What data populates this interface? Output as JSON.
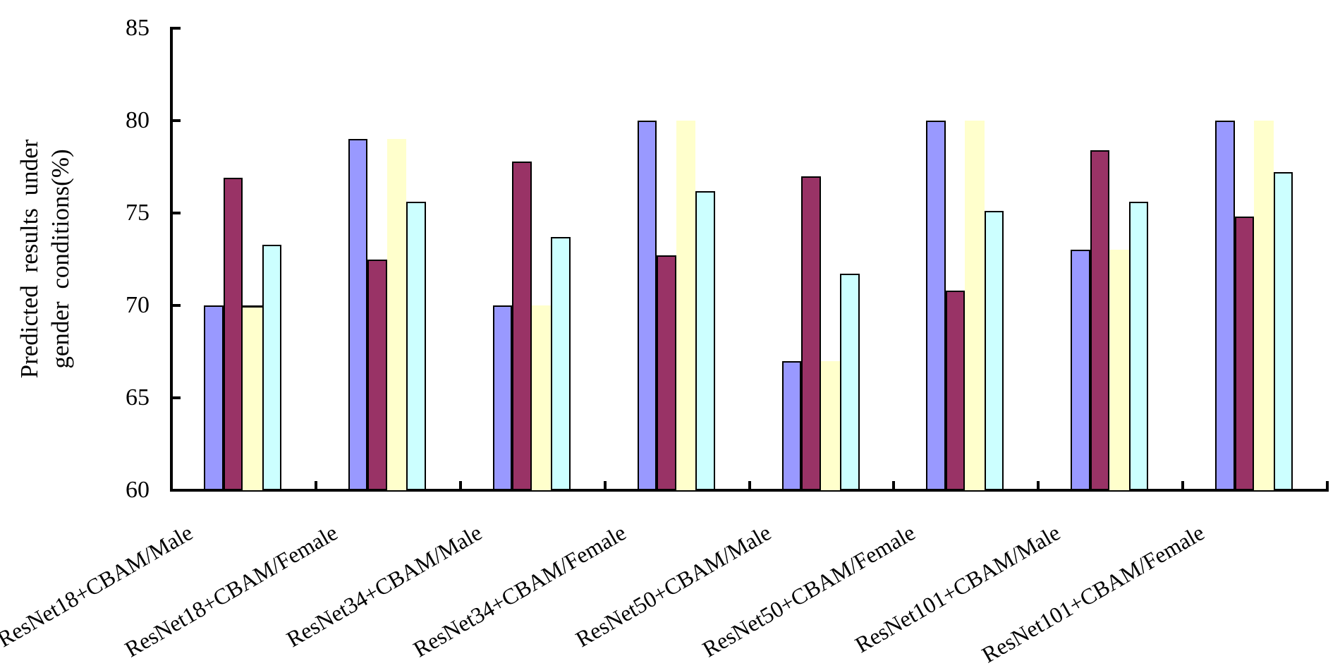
{
  "chart_data": {
    "type": "bar",
    "title": "",
    "ylabel": "Predicted results under gender conditions(%)",
    "ylabel_lines": [
      "Predicted  results  under",
      "gender conditions(%)"
    ],
    "xlabel": "",
    "ylim": [
      60,
      85
    ],
    "yticks": [
      "60",
      "65",
      "70",
      "75",
      "80",
      "85"
    ],
    "grid": false,
    "legend": "none",
    "bar_outline_color": "#000000",
    "categories": [
      "ResNet18+CBAM/Male",
      "ResNet18+CBAM/Female",
      "ResNet34+CBAM/Male",
      "ResNet34+CBAM/Female",
      "ResNet50+CBAM/Male",
      "ResNet50+CBAM/Female",
      "ResNet101+CBAM/Male",
      "ResNet101+CBAM/Female"
    ],
    "series": [
      {
        "name": "series-1",
        "color": "#9999ff",
        "outlined": true,
        "values": [
          70.0,
          79.0,
          70.0,
          80.0,
          67.0,
          80.0,
          73.0,
          80.0
        ]
      },
      {
        "name": "series-2",
        "color": "#993366",
        "outlined": true,
        "values": [
          76.9,
          72.5,
          77.8,
          72.7,
          77.0,
          70.8,
          78.4,
          74.8
        ]
      },
      {
        "name": "series-3",
        "color": "#ffffcc",
        "outlined": false,
        "top_edge_groups": [
          0
        ],
        "values": [
          70.0,
          79.0,
          70.0,
          80.0,
          67.0,
          80.0,
          73.0,
          80.0
        ]
      },
      {
        "name": "series-4",
        "color": "#ccffff",
        "outlined": true,
        "values": [
          73.3,
          75.6,
          73.7,
          76.2,
          71.7,
          75.1,
          75.6,
          77.2
        ]
      }
    ]
  }
}
